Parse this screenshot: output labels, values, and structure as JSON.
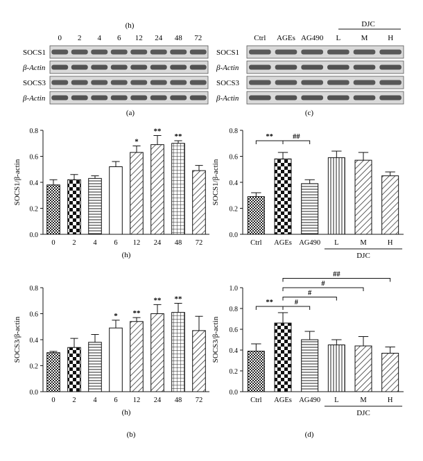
{
  "panels": {
    "a": {
      "label": "(a)",
      "unit": "(h)",
      "lanes": [
        "0",
        "2",
        "4",
        "6",
        "12",
        "24",
        "48",
        "72"
      ],
      "rows": [
        "SOCS1",
        "β-Actin",
        "SOCS3",
        "β-Actin"
      ]
    },
    "c": {
      "label": "(c)",
      "lanes": [
        "Ctrl",
        "AGEs",
        "AG490",
        "L",
        "M",
        "H"
      ],
      "group": "DJC",
      "rows": [
        "SOCS1",
        "β-Actin",
        "SOCS3",
        "β-Actin"
      ]
    },
    "b_label": "(b)",
    "d_label": "(d)"
  },
  "chart_data": [
    {
      "id": "a-chart",
      "type": "bar",
      "categories": [
        "0",
        "2",
        "4",
        "6",
        "12",
        "24",
        "48",
        "72"
      ],
      "values": [
        0.38,
        0.42,
        0.43,
        0.52,
        0.63,
        0.69,
        0.7,
        0.49
      ],
      "errors": [
        0.04,
        0.04,
        0.02,
        0.04,
        0.05,
        0.07,
        0.02,
        0.04
      ],
      "significance": [
        "",
        "",
        "",
        "",
        "*",
        "**",
        "**",
        ""
      ],
      "xlabel": "(h)",
      "ylabel": "SOCS1/β-actin",
      "ylim": [
        0,
        0.8
      ],
      "yticks": [
        0.0,
        0.2,
        0.4,
        0.6,
        0.8
      ],
      "patterns": [
        "dots",
        "checker",
        "hlines",
        "blank",
        "diag",
        "diag",
        "grid",
        "diag"
      ]
    },
    {
      "id": "c-chart",
      "type": "bar",
      "categories": [
        "Ctrl",
        "AGEs",
        "AG490",
        "L",
        "M",
        "H"
      ],
      "values": [
        0.29,
        0.58,
        0.39,
        0.59,
        0.57,
        0.45
      ],
      "errors": [
        0.03,
        0.05,
        0.03,
        0.05,
        0.06,
        0.03
      ],
      "brackets": [
        {
          "from": 0,
          "to": 1,
          "label": "**"
        },
        {
          "from": 1,
          "to": 2,
          "label": "##"
        }
      ],
      "group": "DJC",
      "group_span": [
        3,
        5
      ],
      "ylabel": "SOCS1/β-actin",
      "ylim": [
        0,
        0.8
      ],
      "yticks": [
        0.0,
        0.2,
        0.4,
        0.6,
        0.8
      ],
      "patterns": [
        "dots",
        "checker",
        "hlines",
        "vlines",
        "diag",
        "diag"
      ]
    },
    {
      "id": "b-chart",
      "type": "bar",
      "categories": [
        "0",
        "2",
        "4",
        "6",
        "12",
        "24",
        "48",
        "72"
      ],
      "values": [
        0.3,
        0.34,
        0.38,
        0.49,
        0.54,
        0.6,
        0.61,
        0.47
      ],
      "errors": [
        0.01,
        0.07,
        0.06,
        0.06,
        0.03,
        0.07,
        0.07,
        0.11
      ],
      "significance": [
        "",
        "",
        "",
        "*",
        "**",
        "**",
        "**",
        ""
      ],
      "xlabel": "(h)",
      "ylabel": "SOCS3/β-actin",
      "ylim": [
        0,
        0.8
      ],
      "yticks": [
        0.0,
        0.2,
        0.4,
        0.6,
        0.8
      ],
      "patterns": [
        "dots",
        "checker",
        "hlines",
        "blank",
        "diag",
        "diag",
        "grid",
        "diag"
      ]
    },
    {
      "id": "d-chart",
      "type": "bar",
      "categories": [
        "Ctrl",
        "AGEs",
        "AG490",
        "L",
        "M",
        "H"
      ],
      "values": [
        0.39,
        0.66,
        0.5,
        0.45,
        0.44,
        0.37
      ],
      "errors": [
        0.07,
        0.1,
        0.08,
        0.05,
        0.09,
        0.06
      ],
      "brackets": [
        {
          "from": 0,
          "to": 1,
          "label": "**"
        },
        {
          "from": 1,
          "to": 2,
          "label": "#"
        },
        {
          "from": 1,
          "to": 3,
          "label": "#"
        },
        {
          "from": 1,
          "to": 4,
          "label": "#"
        },
        {
          "from": 1,
          "to": 5,
          "label": "##"
        }
      ],
      "group": "DJC",
      "group_span": [
        3,
        5
      ],
      "ylabel": "SOCS3/β-actin",
      "ylim": [
        0,
        1.0
      ],
      "yticks": [
        0.0,
        0.2,
        0.4,
        0.6,
        0.8,
        1.0
      ],
      "patterns": [
        "dots",
        "checker",
        "hlines",
        "vlines",
        "diag",
        "diag"
      ]
    }
  ]
}
